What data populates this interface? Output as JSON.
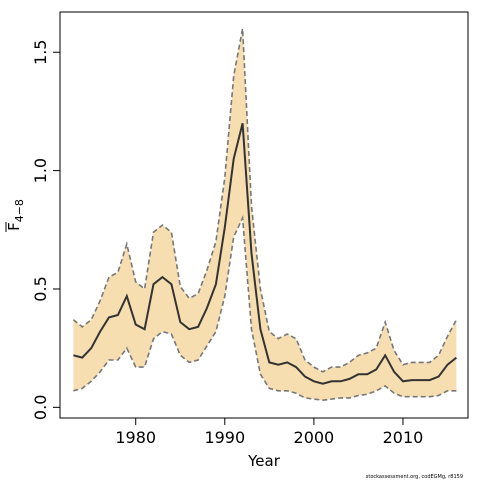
{
  "chart_data": {
    "type": "line",
    "xlabel": "Year",
    "ylabel_main": "F",
    "ylabel_sub": "4−8",
    "xlim": [
      1972,
      2017
    ],
    "ylim": [
      0,
      1.6
    ],
    "x_ticks": [
      "1980",
      "1990",
      "2000",
      "2010"
    ],
    "y_ticks": [
      "0.0",
      "0.5",
      "1.0",
      "1.5"
    ],
    "band_color": "#f6deb0",
    "line_color": "#333333",
    "bound_color": "#777777",
    "x": [
      1973,
      1974,
      1975,
      1976,
      1977,
      1978,
      1979,
      1980,
      1981,
      1982,
      1983,
      1984,
      1985,
      1986,
      1987,
      1988,
      1989,
      1990,
      1991,
      1992,
      1993,
      1994,
      1995,
      1996,
      1997,
      1998,
      1999,
      2000,
      2001,
      2002,
      2003,
      2004,
      2005,
      2006,
      2007,
      2008,
      2009,
      2010,
      2011,
      2012,
      2013,
      2014,
      2015,
      2016
    ],
    "series": [
      {
        "values": [
          0.22,
          0.21,
          0.25,
          0.32,
          0.38,
          0.39,
          0.47,
          0.35,
          0.33,
          0.52,
          0.55,
          0.52,
          0.36,
          0.33,
          0.34,
          0.42,
          0.52,
          0.76,
          1.05,
          1.2,
          0.65,
          0.33,
          0.19,
          0.18,
          0.19,
          0.17,
          0.13,
          0.11,
          0.1,
          0.11,
          0.11,
          0.12,
          0.14,
          0.14,
          0.16,
          0.22,
          0.15,
          0.11,
          0.115,
          0.115,
          0.115,
          0.13,
          0.18,
          0.21
        ]
      },
      {
        "values": [
          0.37,
          0.34,
          0.37,
          0.45,
          0.55,
          0.57,
          0.69,
          0.53,
          0.5,
          0.74,
          0.77,
          0.74,
          0.51,
          0.46,
          0.48,
          0.58,
          0.7,
          0.97,
          1.4,
          1.6,
          0.85,
          0.5,
          0.32,
          0.29,
          0.31,
          0.29,
          0.2,
          0.17,
          0.15,
          0.17,
          0.17,
          0.19,
          0.22,
          0.23,
          0.25,
          0.36,
          0.24,
          0.18,
          0.19,
          0.19,
          0.19,
          0.22,
          0.3,
          0.37
        ]
      },
      {
        "values": [
          0.07,
          0.08,
          0.11,
          0.15,
          0.2,
          0.2,
          0.25,
          0.17,
          0.17,
          0.29,
          0.32,
          0.31,
          0.22,
          0.19,
          0.2,
          0.26,
          0.32,
          0.47,
          0.72,
          0.8,
          0.33,
          0.14,
          0.08,
          0.07,
          0.07,
          0.06,
          0.04,
          0.035,
          0.03,
          0.035,
          0.04,
          0.04,
          0.05,
          0.055,
          0.07,
          0.09,
          0.06,
          0.045,
          0.045,
          0.045,
          0.045,
          0.05,
          0.07,
          0.07
        ]
      }
    ],
    "source": "stockassessment.org, codEGMg, r8159"
  }
}
